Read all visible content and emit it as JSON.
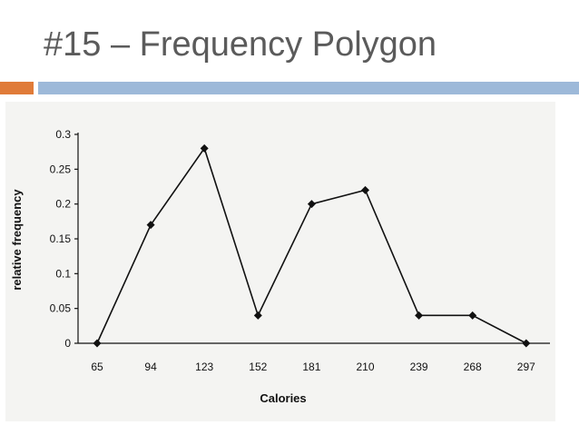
{
  "slide": {
    "title": "#15 – Frequency Polygon"
  },
  "colors": {
    "title_text": "#5b5b5b",
    "accent_orange": "#e07b39",
    "accent_blue": "#9db9d9",
    "line": "#111111",
    "figure_background": "#f4f4f2"
  },
  "chart_data": {
    "type": "line",
    "title": "",
    "xlabel": "Calories",
    "ylabel": "relative frequency",
    "x": [
      65,
      94,
      123,
      152,
      181,
      210,
      239,
      268,
      297
    ],
    "y": [
      0,
      0.17,
      0.28,
      0.04,
      0.2,
      0.22,
      0.04,
      0.04,
      0
    ],
    "x_tick_labels": [
      "65",
      "94",
      "123",
      "152",
      "181",
      "210",
      "239",
      "268",
      "297"
    ],
    "y_ticks": [
      0,
      0.05,
      0.1,
      0.15,
      0.2,
      0.25,
      0.3
    ],
    "y_tick_labels": [
      "0",
      "0.05",
      "0.1",
      "0.15",
      "0.2",
      "0.25",
      "0.3"
    ],
    "ylim": [
      0,
      0.3
    ],
    "marker": "diamond",
    "grid": false,
    "legend": "none"
  }
}
